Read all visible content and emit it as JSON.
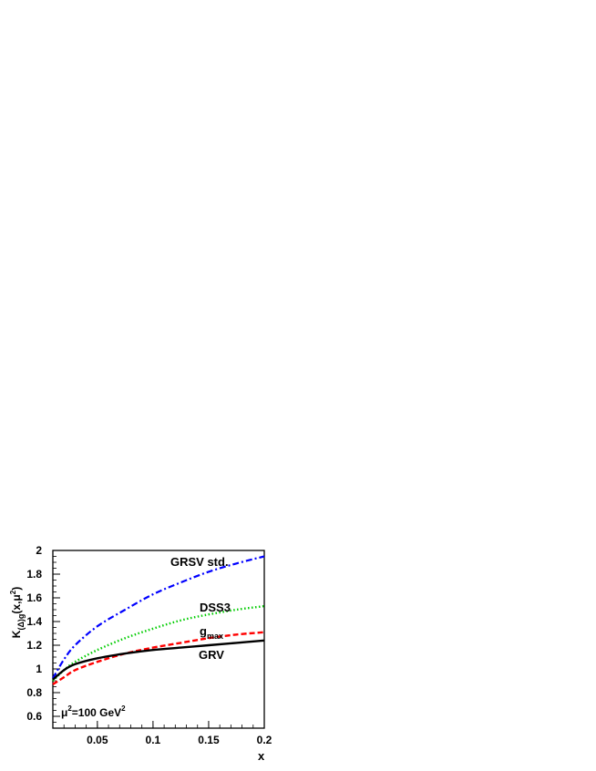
{
  "chart_data": {
    "type": "line",
    "xlabel": "x",
    "ylabel": {
      "main": "K",
      "sub": "(Δ)g",
      "tail": "(x,μ",
      "sup": "2",
      "close": ")"
    },
    "xlim": [
      0.01,
      0.2
    ],
    "ylim": [
      0.5,
      2.0
    ],
    "x_ticks": [
      0.05,
      0.1,
      0.15,
      0.2
    ],
    "x_tick_labels": [
      "0.05",
      "0.1",
      "0.15",
      "0.2"
    ],
    "y_ticks": [
      0.6,
      0.8,
      1.0,
      1.2,
      1.4,
      1.6,
      1.8,
      2.0
    ],
    "y_tick_labels": [
      "0.6",
      "0.8",
      "1",
      "1.2",
      "1.4",
      "1.6",
      "1.8",
      "2"
    ],
    "grid": false,
    "legend": "inline labels",
    "annotation": {
      "text": "μ",
      "sup": "2",
      "rest": "=100 GeV",
      "sup2": "2"
    },
    "series": [
      {
        "name": "GRSV std.",
        "color": "#0000ff",
        "dash": "dash-dot",
        "x": [
          0.01,
          0.02,
          0.03,
          0.05,
          0.075,
          0.1,
          0.125,
          0.15,
          0.175,
          0.2
        ],
        "y": [
          0.92,
          1.08,
          1.2,
          1.36,
          1.5,
          1.63,
          1.73,
          1.82,
          1.89,
          1.95
        ]
      },
      {
        "name": "DSS3",
        "color": "#00cc00",
        "dash": "dotted",
        "x": [
          0.01,
          0.02,
          0.03,
          0.05,
          0.075,
          0.1,
          0.125,
          0.15,
          0.175,
          0.2
        ],
        "y": [
          0.9,
          0.99,
          1.06,
          1.16,
          1.26,
          1.34,
          1.41,
          1.46,
          1.5,
          1.53
        ]
      },
      {
        "name": "g",
        "name_sub": "max",
        "color": "#ff0000",
        "dash": "dashed",
        "x": [
          0.01,
          0.02,
          0.03,
          0.05,
          0.075,
          0.1,
          0.125,
          0.15,
          0.175,
          0.2
        ],
        "y": [
          0.87,
          0.93,
          0.99,
          1.06,
          1.13,
          1.18,
          1.22,
          1.26,
          1.29,
          1.31
        ]
      },
      {
        "name": "GRV",
        "color": "#000000",
        "dash": "solid",
        "x": [
          0.01,
          0.02,
          0.03,
          0.05,
          0.075,
          0.1,
          0.125,
          0.15,
          0.175,
          0.2
        ],
        "y": [
          0.91,
          0.99,
          1.04,
          1.09,
          1.13,
          1.16,
          1.18,
          1.2,
          1.22,
          1.24
        ]
      }
    ]
  }
}
